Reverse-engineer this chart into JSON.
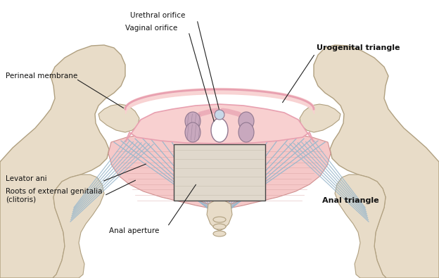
{
  "background_color": "#ffffff",
  "figure_width": 6.24,
  "figure_height": 3.95,
  "dpi": 100,
  "labels": {
    "urethral_orifice": "Urethral orifice",
    "vaginal_orifice": "Vaginal orifice",
    "perineal_membrane": "Perineal membrane",
    "urogenital_triangle": "Urogenital triangle",
    "levator_ani": "Levator ani",
    "roots_external": "Roots of external genitalia\n(clitoris)",
    "anal_aperture": "Anal aperture",
    "anal_triangle": "Anal triangle"
  },
  "colors": {
    "bone": "#e8dcc8",
    "bone_outline": "#b0a080",
    "pink_muscle": "#f5c8c8",
    "pink_muscle_edge": "#d09090",
    "perineal_membrane_fill": "#f8d0d0",
    "perineal_membrane_edge": "#e8a0b0",
    "levator_lines": "#b0c8d8",
    "inset_bg": "#e0d8cc",
    "inset_organ_purple": "#c8a8be",
    "inset_organ_outline": "#907890",
    "anal_outline": "#c09090",
    "line_color": "#222222",
    "label_color": "#111111",
    "blue_lines": "#9ab8cc"
  }
}
